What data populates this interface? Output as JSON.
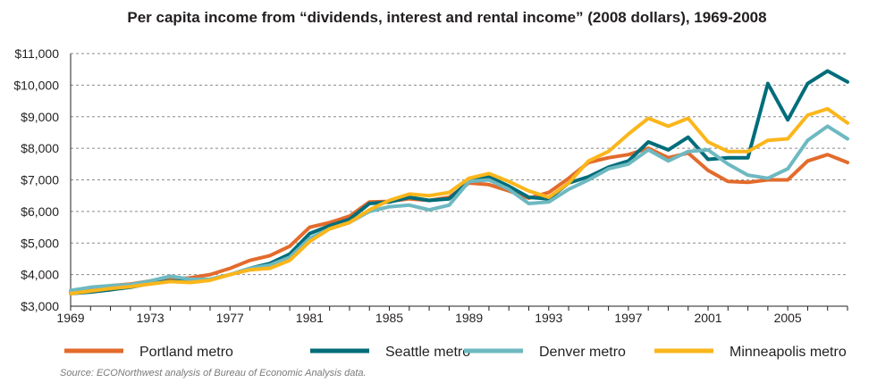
{
  "chart_data": {
    "type": "line",
    "title": "Per capita income from “dividends, interest and rental income” (2008 dollars), 1969-2008",
    "xlabel": "",
    "ylabel": "",
    "ylim": [
      3000,
      11000
    ],
    "xlim": [
      1969,
      2008
    ],
    "y_ticks": [
      "$3,000",
      "$4,000",
      "$5,000",
      "$6,000",
      "$7,000",
      "$8,000",
      "$9,000",
      "$10,000",
      "$11,000"
    ],
    "x_ticks": [
      "1969",
      "1973",
      "1977",
      "1981",
      "1985",
      "1989",
      "1993",
      "1997",
      "2001",
      "2005"
    ],
    "legend_position": "bottom",
    "grid": "horizontal dashed",
    "x": [
      1969,
      1970,
      1971,
      1972,
      1973,
      1974,
      1975,
      1976,
      1977,
      1978,
      1979,
      1980,
      1981,
      1982,
      1983,
      1984,
      1985,
      1986,
      1987,
      1988,
      1989,
      1990,
      1991,
      1992,
      1993,
      1994,
      1995,
      1996,
      1997,
      1998,
      1999,
      2000,
      2001,
      2002,
      2003,
      2004,
      2005,
      2006,
      2007,
      2008
    ],
    "series": [
      {
        "name": "Portland metro",
        "color": "#e36b2c",
        "values": [
          3420,
          3550,
          3650,
          3700,
          3800,
          3850,
          3900,
          4000,
          4200,
          4450,
          4600,
          4900,
          5500,
          5650,
          5850,
          6300,
          6320,
          6400,
          6350,
          6450,
          6900,
          6850,
          6650,
          6420,
          6600,
          7050,
          7550,
          7700,
          7800,
          8000,
          7700,
          7850,
          7300,
          6950,
          6920,
          7000,
          7000,
          7600,
          7800,
          7550
        ]
      },
      {
        "name": "Seattle metro",
        "color": "#006d7a",
        "values": [
          3400,
          3450,
          3520,
          3600,
          3720,
          3800,
          3780,
          3850,
          4000,
          4200,
          4350,
          4650,
          5300,
          5550,
          5750,
          6250,
          6300,
          6450,
          6350,
          6400,
          6950,
          7100,
          6800,
          6450,
          6400,
          6900,
          7100,
          7400,
          7600,
          8200,
          7950,
          8350,
          7650,
          7700,
          7700,
          10050,
          8900,
          10050,
          10450,
          10100
        ]
      },
      {
        "name": "Denver metro",
        "color": "#6eb9c1",
        "values": [
          3500,
          3600,
          3650,
          3680,
          3800,
          3950,
          3850,
          3850,
          4000,
          4200,
          4300,
          4550,
          5150,
          5450,
          5650,
          6000,
          6150,
          6200,
          6050,
          6200,
          6950,
          7000,
          6700,
          6250,
          6300,
          6700,
          7000,
          7350,
          7500,
          7950,
          7600,
          7900,
          7950,
          7500,
          7150,
          7050,
          7350,
          8250,
          8700,
          8300
        ]
      },
      {
        "name": "Minneapolis metro",
        "color": "#fbb61b",
        "values": [
          3400,
          3480,
          3560,
          3620,
          3700,
          3780,
          3750,
          3820,
          4000,
          4150,
          4200,
          4450,
          5050,
          5450,
          5650,
          6050,
          6350,
          6550,
          6500,
          6600,
          7050,
          7200,
          6950,
          6650,
          6450,
          6900,
          7600,
          7900,
          8450,
          8950,
          8700,
          8950,
          8200,
          7900,
          7900,
          8250,
          8300,
          9050,
          9250,
          8800
        ]
      }
    ]
  },
  "source": "Source: ECONorthwest analysis of Bureau of Economic Analysis data."
}
